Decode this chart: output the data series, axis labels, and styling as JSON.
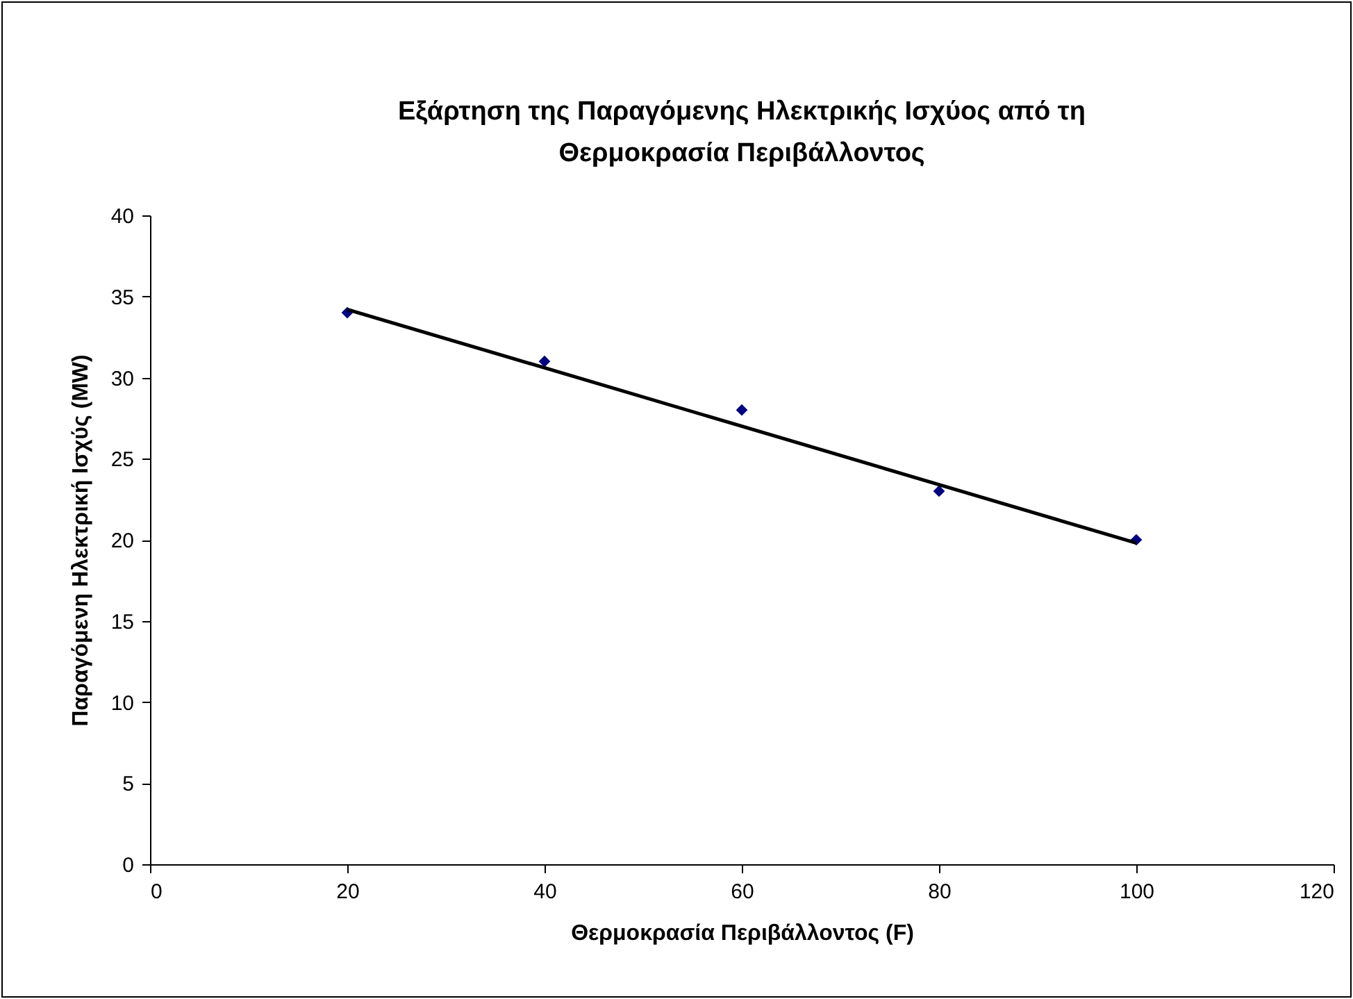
{
  "chart_data": {
    "type": "scatter",
    "title": "Εξάρτηση της Παραγόμενης Ηλεκτρικής Ισχύος από τη Θερμοκρασία Περιβάλλοντος",
    "xlabel": "Θερμοκρασία Περιβάλλοντος (F)",
    "ylabel": "Παραγόμενη Ηλεκτρική Ισχύς (MW)",
    "x": [
      20,
      40,
      60,
      80,
      100
    ],
    "series": [
      {
        "color": "#000080",
        "marker": "diamond",
        "values": [
          34,
          31,
          28,
          23,
          20
        ]
      },
      {
        "type": "line",
        "color": "#000000",
        "marker": "none",
        "x": [
          20,
          100
        ],
        "values": [
          34.2,
          19.8
        ]
      }
    ],
    "xlim": [
      0,
      120
    ],
    "xticks": [
      0,
      20,
      40,
      60,
      80,
      100,
      120
    ],
    "ylim": [
      0,
      40
    ],
    "yticks": [
      0,
      5,
      10,
      15,
      20,
      25,
      30,
      35,
      40
    ],
    "grid": false,
    "line_style": "solid"
  }
}
